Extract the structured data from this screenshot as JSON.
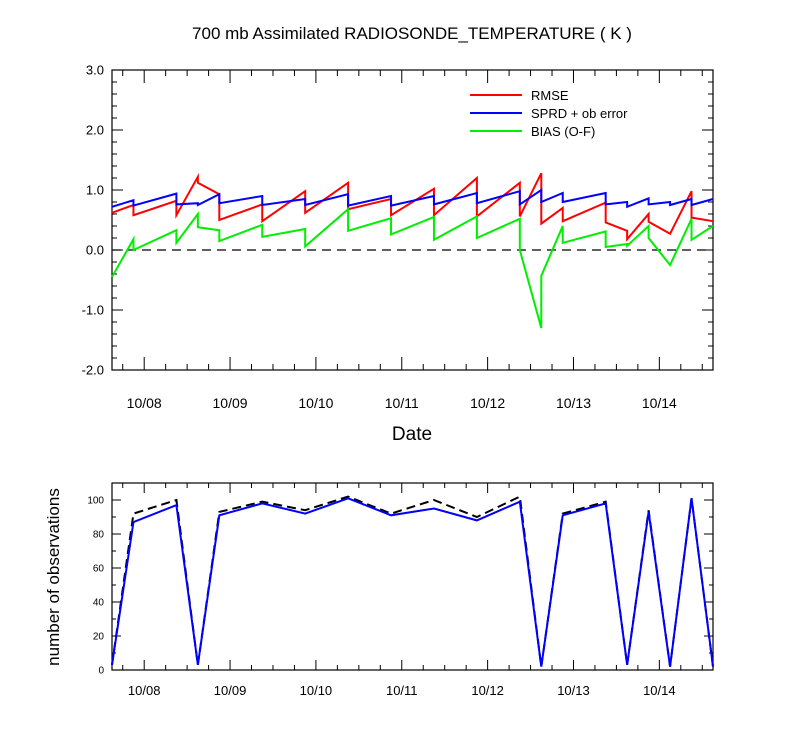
{
  "chart_data": [
    {
      "type": "line",
      "title": "700 mb Assimilated RADIOSONDE_TEMPERATURE ( K )",
      "xlabel": "Date",
      "ylabel": "",
      "ylim": [
        -2.0,
        3.0
      ],
      "xlim": [
        0,
        56
      ],
      "yticks": [
        -2.0,
        -1.0,
        0.0,
        1.0,
        2.0,
        3.0
      ],
      "ytick_labels": [
        "-2.0",
        "-1.0",
        "0.0",
        "1.0",
        "2.0",
        "3.0"
      ],
      "xtick_positions": [
        3,
        11,
        19,
        27,
        35,
        43,
        51
      ],
      "xtick_labels": [
        "10/08",
        "10/09",
        "10/10",
        "10/11",
        "10/12",
        "10/13",
        "10/14"
      ],
      "zero_line": true,
      "legend_position": "top-right",
      "series": [
        {
          "name": "RMSE",
          "color": "#ff0000",
          "points": [
            [
              0,
              0.62
            ],
            [
              2,
              0.75
            ],
            [
              2,
              0.58
            ],
            [
              6,
              0.82
            ],
            [
              6,
              0.58
            ],
            [
              8,
              1.22
            ],
            [
              8,
              1.12
            ],
            [
              10,
              0.93
            ],
            [
              10,
              0.5
            ],
            [
              14,
              0.76
            ],
            [
              14,
              0.48
            ],
            [
              18,
              0.98
            ],
            [
              18,
              0.62
            ],
            [
              22,
              1.12
            ],
            [
              22,
              0.68
            ],
            [
              26,
              0.85
            ],
            [
              26,
              0.58
            ],
            [
              30,
              1.02
            ],
            [
              30,
              0.58
            ],
            [
              34,
              1.2
            ],
            [
              34,
              0.56
            ],
            [
              38,
              1.12
            ],
            [
              38,
              0.56
            ],
            [
              40,
              1.28
            ],
            [
              40,
              0.44
            ],
            [
              42,
              0.7
            ],
            [
              42,
              0.48
            ],
            [
              46,
              0.79
            ],
            [
              46,
              0.46
            ],
            [
              48,
              0.32
            ],
            [
              48,
              0.18
            ],
            [
              50,
              0.6
            ],
            [
              50,
              0.47
            ],
            [
              52,
              0.27
            ],
            [
              54,
              0.98
            ],
            [
              54,
              0.54
            ],
            [
              56,
              0.48
            ]
          ]
        },
        {
          "name": "SPRD + ob error",
          "color": "#0000ff",
          "points": [
            [
              0,
              0.72
            ],
            [
              2,
              0.83
            ],
            [
              2,
              0.74
            ],
            [
              6,
              0.94
            ],
            [
              6,
              0.76
            ],
            [
              8,
              0.78
            ],
            [
              8,
              0.75
            ],
            [
              10,
              0.93
            ],
            [
              10,
              0.78
            ],
            [
              14,
              0.9
            ],
            [
              14,
              0.75
            ],
            [
              18,
              0.85
            ],
            [
              18,
              0.75
            ],
            [
              22,
              0.93
            ],
            [
              22,
              0.74
            ],
            [
              26,
              0.9
            ],
            [
              26,
              0.74
            ],
            [
              30,
              0.9
            ],
            [
              30,
              0.76
            ],
            [
              34,
              0.95
            ],
            [
              34,
              0.78
            ],
            [
              38,
              0.98
            ],
            [
              38,
              0.76
            ],
            [
              40,
              1.0
            ],
            [
              40,
              0.8
            ],
            [
              42,
              0.95
            ],
            [
              42,
              0.8
            ],
            [
              46,
              0.95
            ],
            [
              46,
              0.76
            ],
            [
              48,
              0.8
            ],
            [
              48,
              0.72
            ],
            [
              50,
              0.86
            ],
            [
              50,
              0.76
            ],
            [
              52,
              0.8
            ],
            [
              52,
              0.75
            ],
            [
              54,
              0.85
            ],
            [
              54,
              0.75
            ],
            [
              56,
              0.85
            ]
          ]
        },
        {
          "name": "BIAS (O-F)",
          "color": "#00ee00",
          "points": [
            [
              0,
              -0.45
            ],
            [
              2,
              0.18
            ],
            [
              2,
              0.0
            ],
            [
              6,
              0.33
            ],
            [
              6,
              0.12
            ],
            [
              8,
              0.6
            ],
            [
              8,
              0.38
            ],
            [
              10,
              0.33
            ],
            [
              10,
              0.15
            ],
            [
              14,
              0.42
            ],
            [
              14,
              0.22
            ],
            [
              18,
              0.35
            ],
            [
              18,
              0.06
            ],
            [
              22,
              0.68
            ],
            [
              22,
              0.32
            ],
            [
              26,
              0.53
            ],
            [
              26,
              0.26
            ],
            [
              30,
              0.55
            ],
            [
              30,
              0.17
            ],
            [
              34,
              0.56
            ],
            [
              34,
              0.2
            ],
            [
              38,
              0.52
            ],
            [
              38,
              0.0
            ],
            [
              40,
              -1.3
            ],
            [
              40,
              -0.43
            ],
            [
              42,
              0.4
            ],
            [
              42,
              0.12
            ],
            [
              46,
              0.31
            ],
            [
              46,
              0.05
            ],
            [
              48,
              0.1
            ],
            [
              48,
              0.07
            ],
            [
              50,
              0.4
            ],
            [
              50,
              0.2
            ],
            [
              52,
              -0.25
            ],
            [
              54,
              0.52
            ],
            [
              54,
              0.17
            ],
            [
              56,
              0.4
            ]
          ]
        }
      ]
    },
    {
      "type": "line",
      "title": "",
      "xlabel": "",
      "ylabel": "number of observations",
      "ylim": [
        0,
        110
      ],
      "xlim": [
        0,
        56
      ],
      "yticks": [
        0,
        20,
        40,
        60,
        80,
        100
      ],
      "ytick_labels": [
        "0",
        "20",
        "40",
        "60",
        "80",
        "100"
      ],
      "xtick_positions": [
        3,
        11,
        19,
        27,
        35,
        43,
        51
      ],
      "xtick_labels": [
        "10/08",
        "10/09",
        "10/10",
        "10/11",
        "10/12",
        "10/13",
        "10/14"
      ],
      "series": [
        {
          "style": "dashed",
          "color": "#000000",
          "points": [
            [
              0,
              3
            ],
            [
              2,
              92
            ],
            [
              6,
              100
            ],
            [
              8,
              3
            ],
            [
              10,
              93
            ],
            [
              14,
              99
            ],
            [
              18,
              94
            ],
            [
              22,
              102
            ],
            [
              26,
              92
            ],
            [
              30,
              100
            ],
            [
              34,
              90
            ],
            [
              38,
              102
            ],
            [
              40,
              2
            ],
            [
              42,
              92
            ],
            [
              46,
              99
            ],
            [
              48,
              3
            ],
            [
              50,
              94
            ],
            [
              52,
              2
            ],
            [
              54,
              101
            ],
            [
              56,
              2
            ]
          ]
        },
        {
          "style": "solid",
          "color": "#0000ff",
          "points": [
            [
              0,
              3
            ],
            [
              2,
              87
            ],
            [
              6,
              97
            ],
            [
              8,
              3
            ],
            [
              10,
              91
            ],
            [
              14,
              98
            ],
            [
              18,
              92
            ],
            [
              22,
              101
            ],
            [
              26,
              91
            ],
            [
              30,
              95
            ],
            [
              34,
              88
            ],
            [
              38,
              99
            ],
            [
              40,
              2
            ],
            [
              42,
              91
            ],
            [
              46,
              98
            ],
            [
              48,
              3
            ],
            [
              50,
              93
            ],
            [
              52,
              2
            ],
            [
              54,
              101
            ],
            [
              56,
              2
            ]
          ]
        }
      ]
    }
  ]
}
